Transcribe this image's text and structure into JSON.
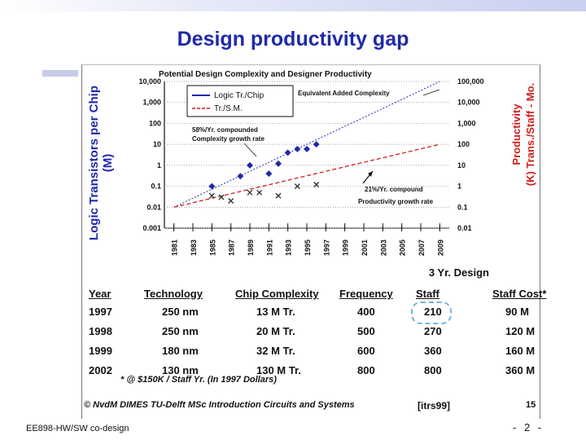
{
  "slide": {
    "title": "Design productivity gap",
    "course": "EE898-HW/SW co-design",
    "page_number": "- 2 -"
  },
  "chart_data": {
    "type": "scatter",
    "title": "Potential Design Complexity and Designer Productivity",
    "left_axis": {
      "label_line1": "Logic Transistors per Chip",
      "label_line2": "(M)",
      "ticks": [
        "10,000",
        "1,000",
        "100",
        "10",
        "1",
        "0.1",
        "0.01",
        "0.001"
      ],
      "scale": "log",
      "ylim": [
        0.001,
        10000
      ]
    },
    "right_axis": {
      "label_line1": "Productivity",
      "label_line2": "(K) Trans./Staff - Mo.",
      "ticks": [
        "100,000",
        "10,000",
        "1,000",
        "100",
        "10",
        "1",
        "0.1",
        "0.01"
      ]
    },
    "x_ticks": [
      "1981",
      "1983",
      "1985",
      "1987",
      "1989",
      "1991",
      "1993",
      "1995",
      "1997",
      "1999",
      "2001",
      "2003",
      "2005",
      "2007",
      "2009"
    ],
    "xlim": [
      1980,
      2010
    ],
    "legend": [
      "Logic Tr./Chip",
      "Tr./S.M."
    ],
    "annotations": {
      "equivalent": "Equivalent Added Complexity",
      "complexity_line1": "58%/Yr. compounded",
      "complexity_line2": "Complexity growth rate",
      "productivity_line1": "21%/Yr. compound",
      "productivity_line2": "Productivity growth rate"
    },
    "series": [
      {
        "name": "Logic Tr./Chip",
        "color": "#1f2aa8",
        "marker": "diamond",
        "trend": {
          "x": [
            1981,
            2009
          ],
          "y": [
            0.01,
            10000
          ]
        },
        "points": [
          {
            "x": 1985,
            "y": 0.1
          },
          {
            "x": 1988,
            "y": 0.3
          },
          {
            "x": 1989,
            "y": 1
          },
          {
            "x": 1991,
            "y": 0.4
          },
          {
            "x": 1992,
            "y": 1.2
          },
          {
            "x": 1993,
            "y": 4
          },
          {
            "x": 1994,
            "y": 6
          },
          {
            "x": 1995,
            "y": 6
          },
          {
            "x": 1996,
            "y": 10
          }
        ]
      },
      {
        "name": "Tr./S.M.",
        "color": "#d11d1d",
        "marker": "x",
        "trend": {
          "x": [
            1981,
            2009
          ],
          "y": [
            0.01,
            10
          ]
        },
        "points": [
          {
            "x": 1985,
            "y": 0.035
          },
          {
            "x": 1986,
            "y": 0.03
          },
          {
            "x": 1987,
            "y": 0.02
          },
          {
            "x": 1989,
            "y": 0.05
          },
          {
            "x": 1990,
            "y": 0.05
          },
          {
            "x": 1992,
            "y": 0.035
          },
          {
            "x": 1994,
            "y": 0.1
          },
          {
            "x": 1996,
            "y": 0.12
          }
        ]
      }
    ]
  },
  "table": {
    "headers": [
      "Year",
      "Technology",
      "Chip Complexity",
      "Frequency",
      "Staff",
      "Staff Cost*"
    ],
    "group_header": "3 Yr. Design",
    "rows": [
      [
        "1997",
        "250 nm",
        "13 M Tr.",
        "400",
        "210",
        "90 M"
      ],
      [
        "1998",
        "250 nm",
        "20 M Tr.",
        "500",
        "270",
        "120 M"
      ],
      [
        "1999",
        "180 nm",
        "32 M Tr.",
        "600",
        "360",
        "160 M"
      ],
      [
        "2002",
        "130 nm",
        "130 M Tr.",
        "800",
        "800",
        "360 M"
      ]
    ],
    "footnote": "* @ $150K / Staff Yr. (In 1997 Dollars)"
  },
  "footer": {
    "credit": "© NvdM DIMES TU-Delft   MSc Introduction Circuits and Systems",
    "reference": "[itrs99]",
    "slide_number": "15"
  },
  "colors": {
    "title": "#1f2aa8",
    "logic": "#1f2aa8",
    "productivity": "#d11d1d"
  }
}
